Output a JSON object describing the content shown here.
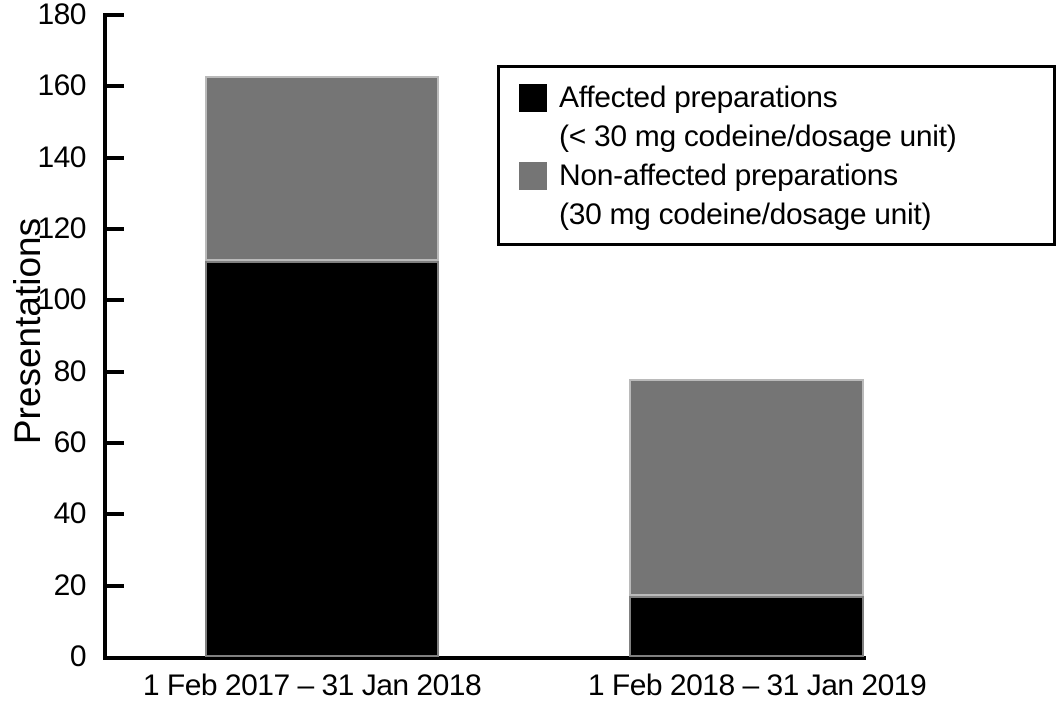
{
  "figure": {
    "background_color": "#ffffff",
    "axis_color": "#000000"
  },
  "chart_data": {
    "type": "bar",
    "stacked": true,
    "title": "",
    "xlabel": "",
    "ylabel": "Presentations",
    "ylim": [
      0,
      180
    ],
    "ytick_step": 20,
    "yticks": [
      0,
      20,
      40,
      60,
      80,
      100,
      120,
      140,
      160,
      180
    ],
    "grid": false,
    "categories": [
      "1 Feb 2017 – 31 Jan 2018",
      "1 Feb 2018 – 31 Jan 2019"
    ],
    "series": [
      {
        "name": "Affected preparations (< 30 mg codeine/dosage unit)",
        "color": "#000000",
        "values": [
          111,
          17
        ]
      },
      {
        "name": "Non-affected preparations (30 mg codeine/dosage unit)",
        "color": "#757575",
        "values": [
          52,
          61
        ]
      }
    ],
    "totals": [
      163,
      78
    ],
    "legend": {
      "position": "upper right",
      "border_color": "#000000",
      "entries": [
        {
          "label_line1": "Affected preparations",
          "label_line2": "(< 30 mg codeine/dosage unit)",
          "color": "#000000"
        },
        {
          "label_line1": "Non-affected preparations",
          "label_line2": "(30 mg codeine/dosage unit)",
          "color": "#757575"
        }
      ]
    }
  }
}
